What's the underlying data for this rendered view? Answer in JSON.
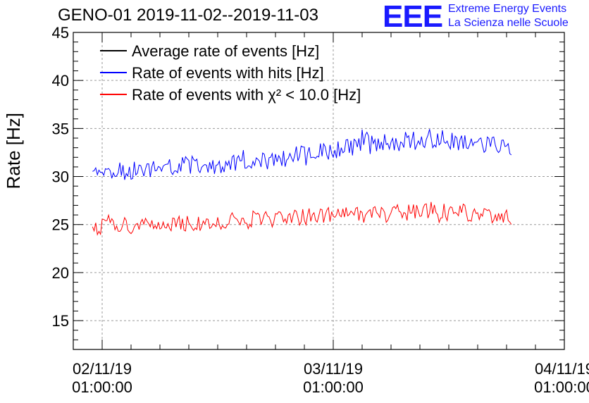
{
  "header": {
    "title": "GENO-01 2019-11-02--2019-11-03",
    "logo_text": "EEE",
    "logo_line1": "Extreme Energy Events",
    "logo_line2": "La Scienza nelle Scuole"
  },
  "colors": {
    "average": "#000000",
    "hits": "#0000ff",
    "chi2": "#ff0000",
    "logo": "#1a1aff",
    "grid": "#9a9a9a"
  },
  "chart_data": {
    "type": "line",
    "title": "GENO-01 2019-11-02--2019-11-03",
    "ylabel": "Rate [Hz]",
    "ylim": [
      12,
      45
    ],
    "yticks": [
      15,
      20,
      25,
      30,
      35,
      40,
      45
    ],
    "xlim": [
      "2019-11-01 22:00",
      "2019-11-04 01:00"
    ],
    "xticks": [
      {
        "x": "2019-11-02 01:00",
        "line1": "02/11/19",
        "line2": "01:00:00"
      },
      {
        "x": "2019-11-03 01:00",
        "line1": "03/11/19",
        "line2": "01:00:00"
      },
      {
        "x": "2019-11-04 01:00",
        "line1": "04/11/19",
        "line2": "01:00:00"
      }
    ],
    "grid": true,
    "legend_position": "top-left",
    "series": [
      {
        "name": "Average rate of events [Hz]",
        "color": "#000000",
        "x": [],
        "y": []
      },
      {
        "name": "Rate of events with hits [Hz]",
        "color": "#0000ff",
        "x": [
          "2019-11-02 00:00",
          "2019-11-02 02:00",
          "2019-11-02 04:00",
          "2019-11-02 06:00",
          "2019-11-02 08:00",
          "2019-11-02 10:00",
          "2019-11-02 12:00",
          "2019-11-02 14:00",
          "2019-11-02 16:00",
          "2019-11-02 18:00",
          "2019-11-02 20:00",
          "2019-11-02 22:00",
          "2019-11-03 00:00",
          "2019-11-03 02:00",
          "2019-11-03 04:00",
          "2019-11-03 06:00",
          "2019-11-03 08:00",
          "2019-11-03 10:00",
          "2019-11-03 12:00",
          "2019-11-03 14:00",
          "2019-11-03 16:00",
          "2019-11-03 18:00",
          "2019-11-03 19:30"
        ],
        "y": [
          30.2,
          30.4,
          30.6,
          30.9,
          31.0,
          31.1,
          31.2,
          31.3,
          31.5,
          31.7,
          31.9,
          32.3,
          32.6,
          33.0,
          33.3,
          33.5,
          33.7,
          34.0,
          33.9,
          33.7,
          33.4,
          33.2,
          33.0
        ],
        "noise": 1.0
      },
      {
        "name": "Rate of events with χ² < 10.0 [Hz]",
        "color": "#ff0000",
        "x": [
          "2019-11-02 00:00",
          "2019-11-02 02:00",
          "2019-11-02 04:00",
          "2019-11-02 06:00",
          "2019-11-02 08:00",
          "2019-11-02 10:00",
          "2019-11-02 12:00",
          "2019-11-02 14:00",
          "2019-11-02 16:00",
          "2019-11-02 18:00",
          "2019-11-02 20:00",
          "2019-11-02 22:00",
          "2019-11-03 00:00",
          "2019-11-03 02:00",
          "2019-11-03 04:00",
          "2019-11-03 06:00",
          "2019-11-03 08:00",
          "2019-11-03 10:00",
          "2019-11-03 12:00",
          "2019-11-03 14:00",
          "2019-11-03 16:00",
          "2019-11-03 18:00",
          "2019-11-03 19:30"
        ],
        "y": [
          24.6,
          24.8,
          24.9,
          25.0,
          25.1,
          25.2,
          25.3,
          25.4,
          25.5,
          25.6,
          25.7,
          25.8,
          25.9,
          26.0,
          26.0,
          26.1,
          26.2,
          26.3,
          26.3,
          26.2,
          26.1,
          26.0,
          25.9
        ],
        "noise": 0.9
      }
    ]
  }
}
